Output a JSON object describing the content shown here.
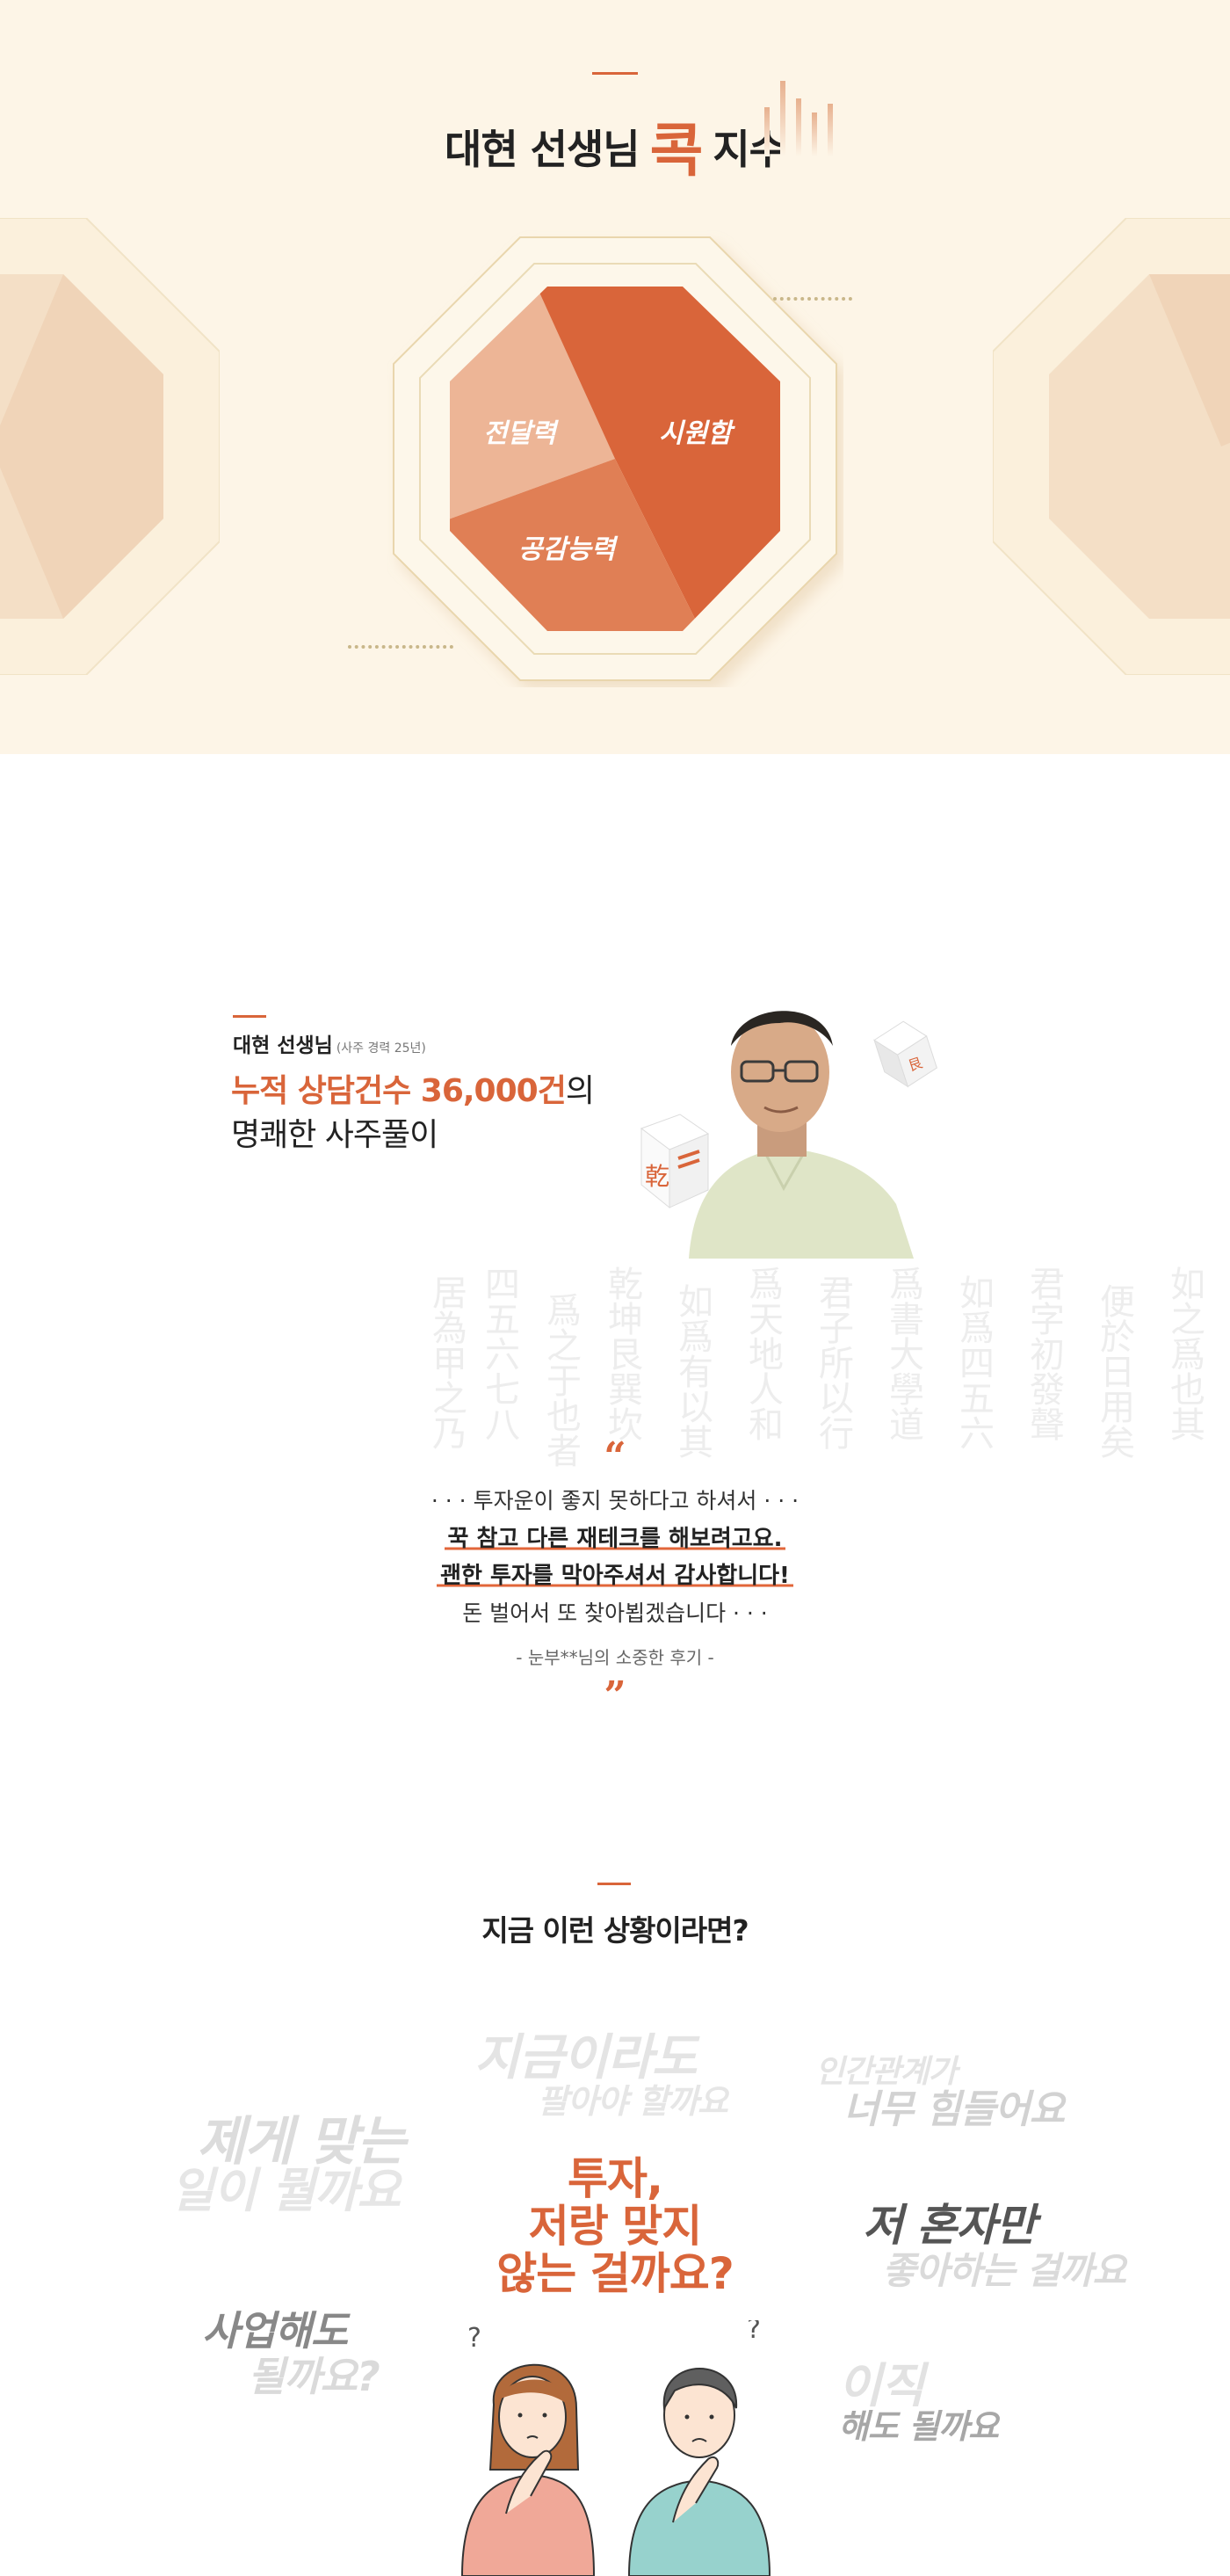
{
  "section1": {
    "title_before": "대현 선생님",
    "title_kok": "콕",
    "title_after": "지수",
    "pie_labels": {
      "delivery": "전달력",
      "refreshing": "시원함",
      "empathy": "공감능력"
    },
    "colors": {
      "accent": "#d9653a",
      "light": "#edb596",
      "mid": "#e07f55",
      "bg": "#fdf5e7"
    }
  },
  "section2": {
    "teacher_name": "대현 선생님",
    "career": "(사주 경력 25년)",
    "stat_highlight": "누적 상담건수 36,000건",
    "stat_tail": "의",
    "stat_line2": "명쾌한 사주풀이",
    "quote_open": "“",
    "quote_lines": {
      "line1": "· · · 투자운이 좋지 못하다고 하셔서 · · ·",
      "line2": "꾹 참고 다른 재테크를 해보려고요.",
      "line3": "괜한 투자를 막아주셔서 감사합니다!",
      "line4": "돈 벌어서 또 찾아뵙겠습니다 · · ·"
    },
    "review_by": "- 눈부**님의 소중한 후기 -",
    "quote_close": "”"
  },
  "section3": {
    "title": "지금 이런 상황이라면?",
    "center_question": {
      "line1": "투자,",
      "line2": "저랑 맞지",
      "line3": "않는 걸까요?"
    },
    "bubbles": {
      "b1a": "지금이라도",
      "b1b": "팔아야 할까요",
      "b2a": "인간관계가",
      "b2b": "너무 힘들어요",
      "b3a": "제게 맞는",
      "b3b": "일이 뭘까요",
      "b4a": "저 혼자만",
      "b4b": "좋아하는 걸까요",
      "b5a": "사업해도",
      "b5b": "될까요?",
      "b6a": "이직",
      "b6b": "해도 될까요"
    }
  }
}
